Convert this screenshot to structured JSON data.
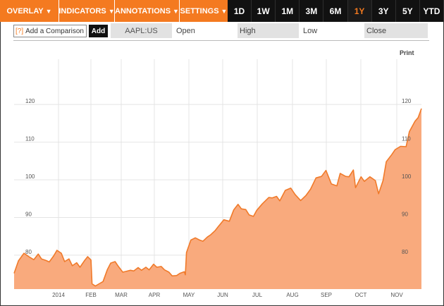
{
  "toolbar": {
    "menus": [
      {
        "label": "OVERLAY",
        "name": "overlay-menu"
      },
      {
        "label": "INDICATORS",
        "name": "indicators-menu"
      },
      {
        "label": "ANNOTATIONS",
        "name": "annotations-menu"
      },
      {
        "label": "SETTINGS",
        "name": "settings-menu"
      }
    ],
    "ranges": [
      "1D",
      "1W",
      "1M",
      "3M",
      "6M",
      "1Y",
      "3Y",
      "5Y",
      "YTD"
    ],
    "active_range": "1Y"
  },
  "compare": {
    "help_label": "[?]",
    "placeholder": "Add a Comparison",
    "add_label": "Add"
  },
  "fields": {
    "ticker": "AAPL:US",
    "open": "Open",
    "high": "High",
    "low": "Low",
    "close": "Close"
  },
  "print_label": "Print",
  "colors": {
    "accent": "#f47a20",
    "area_fill": "#f9aa7d",
    "line": "#f07a2a",
    "toolbar_dark": "#111111"
  },
  "chart_data": {
    "type": "area",
    "title": "",
    "ylim": [
      71,
      132
    ],
    "yticks": [
      80,
      90,
      100,
      110,
      120
    ],
    "xtick_labels": [
      "2014",
      "FEB",
      "MAR",
      "APR",
      "MAY",
      "JUN",
      "JUL",
      "AUG",
      "SEP",
      "OCT",
      "NOV"
    ],
    "x_range": [
      "2013-11-18",
      "2014-11-24"
    ],
    "grid": true,
    "series": [
      {
        "points": [
          [
            "2013-11-18",
            75.2
          ],
          [
            "2013-11-22",
            78.5
          ],
          [
            "2013-11-27",
            80.5
          ],
          [
            "2013-12-02",
            79.5
          ],
          [
            "2013-12-06",
            78.8
          ],
          [
            "2013-12-10",
            80.3
          ],
          [
            "2013-12-13",
            79.0
          ],
          [
            "2013-12-17",
            78.6
          ],
          [
            "2013-12-20",
            78.2
          ],
          [
            "2013-12-24",
            79.8
          ],
          [
            "2013-12-27",
            81.3
          ],
          [
            "2013-12-31",
            80.5
          ],
          [
            "2014-01-03",
            78.3
          ],
          [
            "2014-01-07",
            79.0
          ],
          [
            "2014-01-10",
            77.2
          ],
          [
            "2014-01-14",
            78.0
          ],
          [
            "2014-01-17",
            76.8
          ],
          [
            "2014-01-21",
            78.5
          ],
          [
            "2014-01-24",
            79.6
          ],
          [
            "2014-01-27",
            78.7
          ],
          [
            "2014-01-28",
            72.4
          ],
          [
            "2014-01-31",
            71.8
          ],
          [
            "2014-02-04",
            72.5
          ],
          [
            "2014-02-07",
            73.0
          ],
          [
            "2014-02-11",
            76.2
          ],
          [
            "2014-02-14",
            77.9
          ],
          [
            "2014-02-18",
            78.3
          ],
          [
            "2014-02-21",
            77.0
          ],
          [
            "2014-02-25",
            75.5
          ],
          [
            "2014-02-28",
            75.7
          ],
          [
            "2014-03-04",
            76.0
          ],
          [
            "2014-03-07",
            75.8
          ],
          [
            "2014-03-11",
            76.7
          ],
          [
            "2014-03-14",
            76.0
          ],
          [
            "2014-03-18",
            76.8
          ],
          [
            "2014-03-21",
            76.1
          ],
          [
            "2014-03-25",
            77.6
          ],
          [
            "2014-03-28",
            76.8
          ],
          [
            "2014-04-01",
            77.0
          ],
          [
            "2014-04-04",
            76.1
          ],
          [
            "2014-04-08",
            75.5
          ],
          [
            "2014-04-11",
            74.5
          ],
          [
            "2014-04-15",
            74.6
          ],
          [
            "2014-04-18",
            75.2
          ],
          [
            "2014-04-22",
            75.6
          ],
          [
            "2014-04-23",
            74.8
          ],
          [
            "2014-04-24",
            80.7
          ],
          [
            "2014-04-28",
            84.0
          ],
          [
            "2014-05-02",
            84.6
          ],
          [
            "2014-05-06",
            84.0
          ],
          [
            "2014-05-09",
            83.7
          ],
          [
            "2014-05-13",
            84.8
          ],
          [
            "2014-05-16",
            85.4
          ],
          [
            "2014-05-20",
            86.5
          ],
          [
            "2014-05-23",
            87.6
          ],
          [
            "2014-05-28",
            89.4
          ],
          [
            "2014-06-02",
            89.0
          ],
          [
            "2014-06-06",
            92.0
          ],
          [
            "2014-06-10",
            93.5
          ],
          [
            "2014-06-13",
            92.3
          ],
          [
            "2014-06-17",
            92.1
          ],
          [
            "2014-06-20",
            90.7
          ],
          [
            "2014-06-24",
            90.3
          ],
          [
            "2014-06-27",
            91.9
          ],
          [
            "2014-07-02",
            93.6
          ],
          [
            "2014-07-08",
            95.3
          ],
          [
            "2014-07-11",
            95.2
          ],
          [
            "2014-07-15",
            95.6
          ],
          [
            "2014-07-18",
            94.4
          ],
          [
            "2014-07-23",
            97.2
          ],
          [
            "2014-07-28",
            97.8
          ],
          [
            "2014-08-01",
            96.1
          ],
          [
            "2014-08-06",
            94.5
          ],
          [
            "2014-08-11",
            95.9
          ],
          [
            "2014-08-15",
            97.5
          ],
          [
            "2014-08-20",
            100.5
          ],
          [
            "2014-08-25",
            100.9
          ],
          [
            "2014-08-29",
            102.5
          ],
          [
            "2014-09-03",
            98.9
          ],
          [
            "2014-09-08",
            98.4
          ],
          [
            "2014-09-11",
            101.7
          ],
          [
            "2014-09-16",
            100.9
          ],
          [
            "2014-09-19",
            100.8
          ],
          [
            "2014-09-23",
            102.6
          ],
          [
            "2014-09-25",
            97.9
          ],
          [
            "2014-09-30",
            100.8
          ],
          [
            "2014-10-03",
            99.6
          ],
          [
            "2014-10-08",
            100.8
          ],
          [
            "2014-10-13",
            99.8
          ],
          [
            "2014-10-16",
            96.3
          ],
          [
            "2014-10-20",
            99.8
          ],
          [
            "2014-10-23",
            104.8
          ],
          [
            "2014-10-28",
            106.7
          ],
          [
            "2014-10-31",
            108.0
          ],
          [
            "2014-11-05",
            108.9
          ],
          [
            "2014-11-10",
            108.8
          ],
          [
            "2014-11-13",
            112.8
          ],
          [
            "2014-11-18",
            115.5
          ],
          [
            "2014-11-21",
            116.5
          ],
          [
            "2014-11-24",
            118.9
          ]
        ]
      }
    ]
  }
}
